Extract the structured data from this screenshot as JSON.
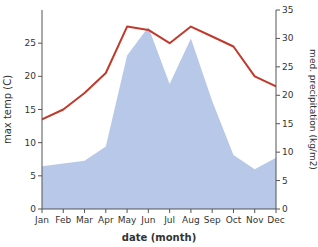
{
  "chart_data": {
    "type": "line",
    "categories": [
      "Jan",
      "Feb",
      "Mar",
      "Apr",
      "May",
      "Jun",
      "Jul",
      "Aug",
      "Sep",
      "Oct",
      "Nov",
      "Dec"
    ],
    "series": [
      {
        "type": "area",
        "axis": "y2",
        "color": "#b8c8e8",
        "values": [
          7.5,
          8.0,
          8.5,
          11.0,
          27.0,
          32.0,
          22.0,
          30.0,
          19.0,
          9.5,
          7.0,
          9.0
        ]
      },
      {
        "type": "line",
        "color": "#c0392b",
        "values": [
          13.5,
          15.0,
          17.5,
          20.5,
          27.5,
          27.0,
          25.0,
          27.5,
          26.0,
          24.5,
          20.0,
          18.5
        ]
      }
    ],
    "xlabel": "date (month)",
    "ylabel": "max temp (C)",
    "y2label": "med. precipitation (kg/m2)",
    "ylim": [
      0,
      30
    ],
    "yticks": [
      0,
      5,
      10,
      15,
      20,
      25
    ],
    "y2lim": [
      0,
      35
    ],
    "y2ticks": [
      0,
      5,
      10,
      15,
      20,
      25,
      30,
      35
    ]
  }
}
